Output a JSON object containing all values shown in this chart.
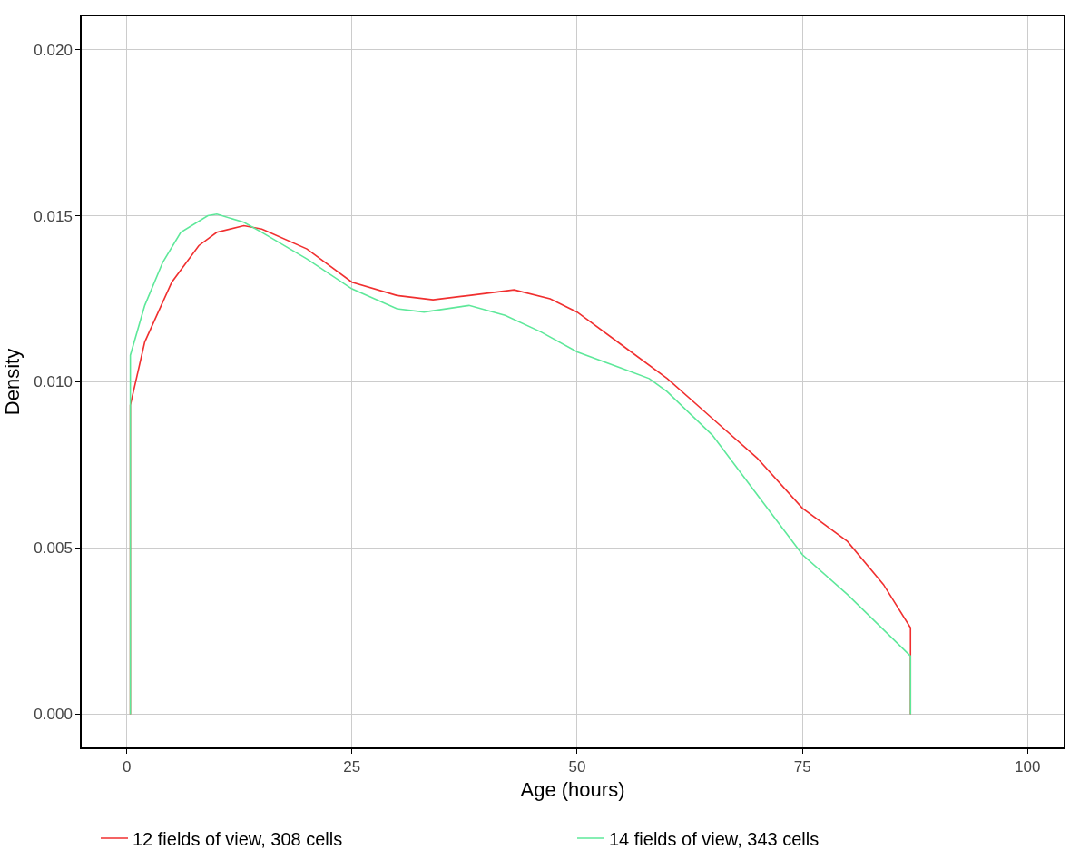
{
  "chart_data": {
    "type": "line",
    "xlabel": "Age (hours)",
    "ylabel": "Density",
    "xlim": [
      -5,
      104
    ],
    "xticks": [
      0,
      25,
      50,
      75,
      100
    ],
    "ylim": [
      -0.001,
      0.021
    ],
    "yticks": [
      {
        "value": 0,
        "label": "0.000"
      },
      {
        "value": 0.005,
        "label": "0.005"
      },
      {
        "value": 0.01,
        "label": "0.010"
      },
      {
        "value": 0.015,
        "label": "0.015"
      },
      {
        "value": 0.02,
        "label": "0.020"
      }
    ],
    "grid": true,
    "legend": "bottom",
    "line_style": "solid",
    "marker": "none",
    "series": [
      {
        "name": "12 fields of view, 308 cells",
        "color": "#f02f2f",
        "x": [
          0.4,
          0.4,
          2,
          5,
          8,
          10,
          13,
          15,
          20,
          25,
          30,
          34,
          38,
          43,
          47,
          50,
          55,
          60,
          65,
          70,
          75,
          80,
          84,
          87,
          87
        ],
        "values": [
          0,
          0.0093,
          0.0112,
          0.013,
          0.0141,
          0.0145,
          0.0147,
          0.0146,
          0.014,
          0.013,
          0.0126,
          0.01247,
          0.0126,
          0.01277,
          0.0125,
          0.0121,
          0.0111,
          0.0101,
          0.0089,
          0.0077,
          0.0062,
          0.0052,
          0.0039,
          0.0026,
          0
        ]
      },
      {
        "name": "14 fields of view, 343 cells",
        "color": "#5ee89a",
        "x": [
          0.4,
          0.4,
          2,
          4,
          6,
          9,
          10,
          13,
          15,
          20,
          25,
          30,
          33,
          38,
          42,
          46,
          50,
          55,
          58,
          60,
          65,
          70,
          75,
          80,
          87,
          87
        ],
        "values": [
          0,
          0.0108,
          0.0123,
          0.0136,
          0.0145,
          0.015,
          0.01505,
          0.0148,
          0.0145,
          0.0137,
          0.0128,
          0.0122,
          0.0121,
          0.0123,
          0.012,
          0.0115,
          0.0109,
          0.0104,
          0.0101,
          0.0097,
          0.0084,
          0.0066,
          0.0048,
          0.0036,
          0.00175,
          0
        ]
      }
    ]
  }
}
